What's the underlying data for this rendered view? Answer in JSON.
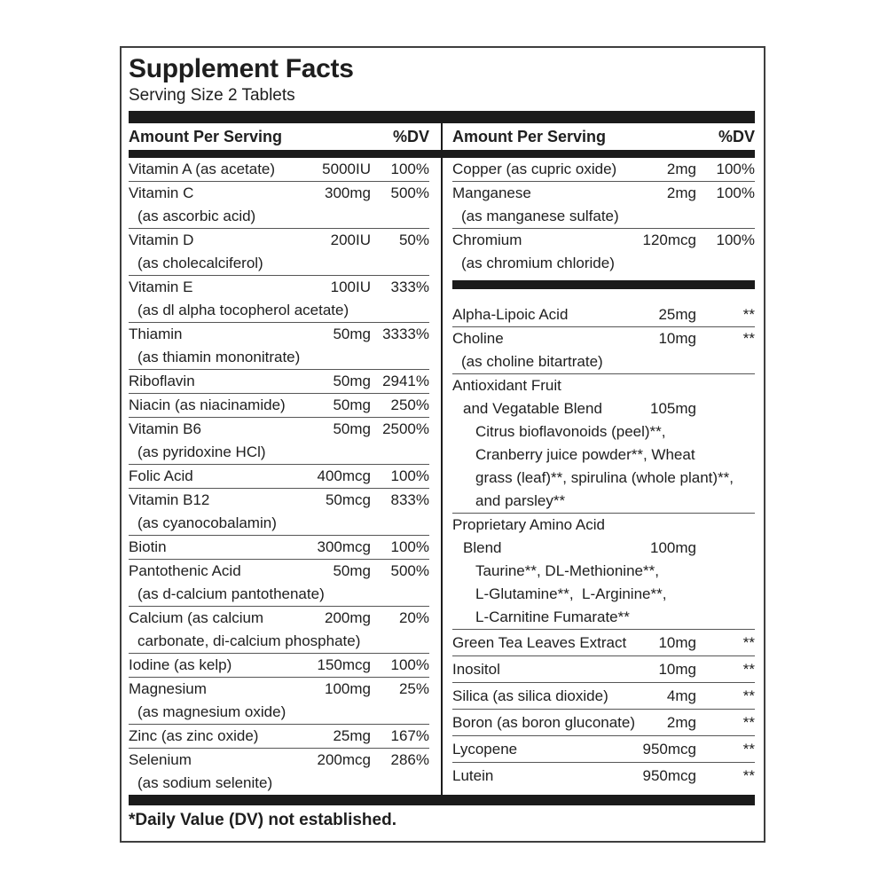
{
  "label": {
    "title": "Supplement Facts",
    "serving_size": "Serving Size 2 Tablets",
    "header": {
      "amount_label": "Amount Per Serving",
      "dv_label": "%DV"
    },
    "footnote": "*Daily Value (DV) not established.",
    "colors": {
      "text": "#1e1e1e",
      "bar": "#1b1b1b",
      "rule": "#565656",
      "border": "#3f3f3f",
      "background": "#ffffff"
    },
    "columns": [
      {
        "side": "left",
        "rows": [
          {
            "name": "Vitamin A (as acetate)",
            "amount": "5000IU",
            "pct": "100%"
          },
          {
            "name": "Vitamin C",
            "amount": "300mg",
            "pct": "500%",
            "subs": [
              "(as ascorbic acid)"
            ]
          },
          {
            "name": "Vitamin D",
            "amount": "200IU",
            "pct": "50%",
            "subs": [
              "(as cholecalciferol)"
            ]
          },
          {
            "name": "Vitamin E",
            "amount": "100IU",
            "pct": "333%",
            "subs": [
              "(as dl alpha tocopherol acetate)"
            ]
          },
          {
            "name": "Thiamin",
            "amount": "50mg",
            "pct": "3333%",
            "subs": [
              "(as thiamin mononitrate)"
            ]
          },
          {
            "name": "Riboflavin",
            "amount": "50mg",
            "pct": "2941%"
          },
          {
            "name": "Niacin (as niacinamide)",
            "amount": "50mg",
            "pct": "250%"
          },
          {
            "name": "Vitamin B6",
            "amount": "50mg",
            "pct": "2500%",
            "subs": [
              "(as pyridoxine HCl)"
            ]
          },
          {
            "name": "Folic Acid",
            "amount": "400mcg",
            "pct": "100%"
          },
          {
            "name": "Vitamin B12",
            "amount": "50mcg",
            "pct": "833%",
            "subs": [
              "(as cyanocobalamin)"
            ]
          },
          {
            "name": "Biotin",
            "amount": "300mcg",
            "pct": "100%"
          },
          {
            "name": "Pantothenic Acid",
            "amount": "50mg",
            "pct": "500%",
            "subs": [
              "(as d-calcium pantothenate)"
            ]
          },
          {
            "name": "Calcium (as calcium",
            "amount": "200mg",
            "pct": "20%",
            "subs": [
              "carbonate, di-calcium phosphate)"
            ]
          },
          {
            "name": "Iodine (as kelp)",
            "amount": "150mcg",
            "pct": "100%"
          },
          {
            "name": "Magnesium",
            "amount": "100mg",
            "pct": "25%",
            "subs": [
              "(as magnesium oxide)"
            ]
          },
          {
            "name": "Zinc (as zinc oxide)",
            "amount": "25mg",
            "pct": "167%"
          },
          {
            "name": "Selenium",
            "amount": "200mcg",
            "pct": "286%",
            "subs": [
              "(as sodium selenite)"
            ],
            "no_rule": true
          }
        ]
      },
      {
        "side": "right",
        "rows": [
          {
            "name": "Copper (as cupric oxide)",
            "amount": "2mg",
            "pct": "100%"
          },
          {
            "name": "Manganese",
            "amount": "2mg",
            "pct": "100%",
            "subs": [
              "(as manganese sulfate)"
            ]
          },
          {
            "name": "Chromium",
            "amount": "120mcg",
            "pct": "100%",
            "subs": [
              "(as chromium chloride)"
            ],
            "no_rule": true
          },
          {
            "type": "bar"
          },
          {
            "name": "Alpha-Lipoic Acid",
            "amount": "25mg",
            "pct": "**"
          },
          {
            "name": "Choline",
            "amount": "10mg",
            "pct": "**",
            "subs": [
              "(as choline bitartrate)"
            ]
          },
          {
            "name": "Antioxidant Fruit",
            "name2": "and Vegatable Blend",
            "amount": "105mg",
            "ingredients": [
              "Citrus bioflavonoids (peel)**,",
              "Cranberry juice powder**, Wheat",
              "grass (leaf)**, spirulina (whole plant)**,",
              "and parsley**"
            ]
          },
          {
            "name": "Proprietary Amino Acid",
            "name2": "Blend",
            "amount": "100mg",
            "ingredients": [
              "Taurine**, DL-Methionine**,",
              "L-Glutamine**,  L-Arginine**,",
              "L-Carnitine Fumarate**"
            ]
          },
          {
            "name": "Green Tea Leaves Extract",
            "amount": "10mg",
            "pct": "**",
            "tall": true
          },
          {
            "name": "Inositol",
            "amount": "10mg",
            "pct": "**",
            "tall": true
          },
          {
            "name": "Silica (as silica dioxide)",
            "amount": "4mg",
            "pct": "**",
            "tall": true
          },
          {
            "name": "Boron (as boron gluconate)",
            "amount": "2mg",
            "pct": "**",
            "tall": true
          },
          {
            "name": "Lycopene",
            "amount": "950mcg",
            "pct": "**",
            "tall": true
          },
          {
            "name": "Lutein",
            "amount": "950mcg",
            "pct": "**",
            "tall": true,
            "no_rule": true
          }
        ]
      }
    ]
  }
}
